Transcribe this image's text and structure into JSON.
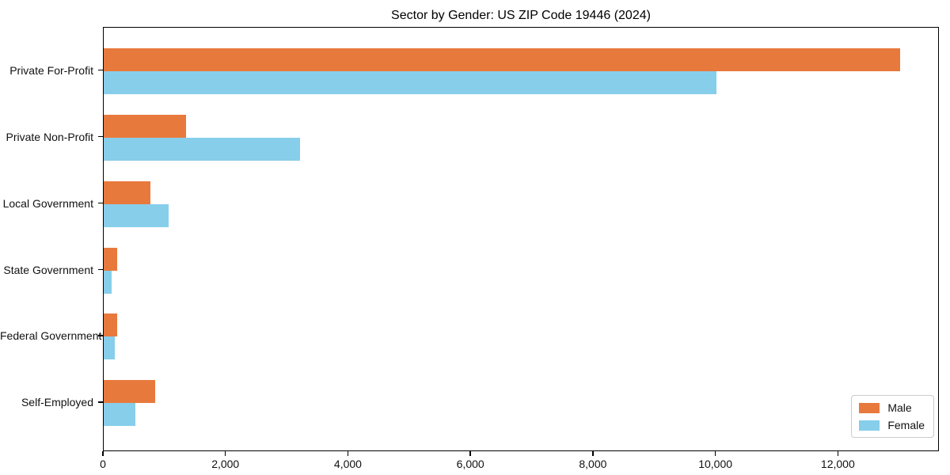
{
  "chart_data": {
    "type": "bar",
    "orientation": "horizontal",
    "title": "Sector by Gender: US ZIP Code 19446 (2024)",
    "categories": [
      "Private For-Profit",
      "Private Non-Profit",
      "Local Government",
      "State Government",
      "Federal Government",
      "Self-Employed"
    ],
    "series": [
      {
        "name": "Male",
        "color": "#E8793C",
        "values": [
          13000,
          1340,
          760,
          225,
          215,
          840
        ]
      },
      {
        "name": "Female",
        "color": "#87CEEB",
        "values": [
          10000,
          3200,
          1060,
          130,
          175,
          520
        ]
      }
    ],
    "xlabel": "",
    "ylabel": "",
    "xlim": [
      0,
      13650
    ],
    "xticks": {
      "values": [
        0,
        2000,
        4000,
        6000,
        8000,
        10000,
        12000
      ],
      "labels": [
        "0",
        "2,000",
        "4,000",
        "6,000",
        "8,000",
        "10,000",
        "12,000"
      ]
    },
    "grid": "off",
    "legend_position": "lower right",
    "colors": {
      "male": "#E8793C",
      "female": "#87CEEB",
      "axis": "#000000",
      "background": "#ffffff"
    }
  }
}
